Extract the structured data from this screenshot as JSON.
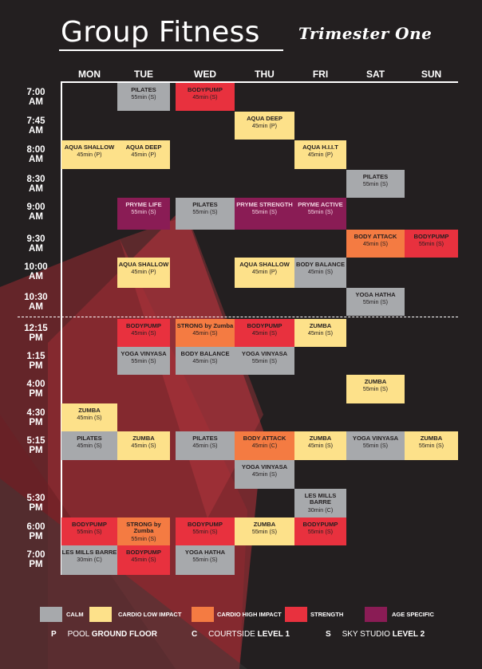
{
  "header": {
    "title": "Group Fitness",
    "subtitle": "Trimester One"
  },
  "days": [
    "MON",
    "TUE",
    "WED",
    "THU",
    "FRI",
    "SAT",
    "SUN"
  ],
  "times": [
    "7:00 AM",
    "7:45 AM",
    "8:00 AM",
    "8:30 AM",
    "9:00 AM",
    "9:30 AM",
    "10:00 AM",
    "10:30 AM",
    "12:15 PM",
    "1:15 PM",
    "4:00 PM",
    "4:30 PM",
    "5:15 PM",
    "5:30 PM",
    "6:00 PM",
    "7:00 PM"
  ],
  "classes": [
    {
      "day": "TUE",
      "time": "7:00 AM",
      "name": "PILATES",
      "duration": "55min (S)",
      "category": "calm"
    },
    {
      "day": "WED",
      "time": "7:00 AM",
      "name": "BODYPUMP",
      "duration": "45min (S)",
      "category": "strength"
    },
    {
      "day": "THU",
      "time": "7:45 AM",
      "name": "AQUA DEEP",
      "duration": "45min (P)",
      "category": "cardio-low"
    },
    {
      "day": "MON",
      "time": "8:00 AM",
      "name": "AQUA SHALLOW",
      "duration": "45min (P)",
      "category": "cardio-low"
    },
    {
      "day": "TUE",
      "time": "8:00 AM",
      "name": "AQUA DEEP",
      "duration": "45min (P)",
      "category": "cardio-low"
    },
    {
      "day": "FRI",
      "time": "8:00 AM",
      "name": "AQUA H.I.I.T",
      "duration": "45min (P)",
      "category": "cardio-low"
    },
    {
      "day": "SAT",
      "time": "8:30 AM",
      "name": "PILATES",
      "duration": "55min (S)",
      "category": "calm"
    },
    {
      "day": "TUE",
      "time": "9:00 AM",
      "name": "PRYME LIFE",
      "duration": "55min (S)",
      "category": "age"
    },
    {
      "day": "WED",
      "time": "9:00 AM",
      "name": "PILATES",
      "duration": "55min (S)",
      "category": "calm"
    },
    {
      "day": "THU",
      "time": "9:00 AM",
      "name": "PRYME STRENGTH",
      "duration": "55min (S)",
      "category": "age"
    },
    {
      "day": "FRI",
      "time": "9:00 AM",
      "name": "PRYME ACTIVE",
      "duration": "55min (S)",
      "category": "age"
    },
    {
      "day": "SAT",
      "time": "9:30 AM",
      "name": "BODY ATTACK",
      "duration": "45min (S)",
      "category": "cardio-high"
    },
    {
      "day": "SUN",
      "time": "9:30 AM",
      "name": "BODYPUMP",
      "duration": "55min (S)",
      "category": "strength"
    },
    {
      "day": "TUE",
      "time": "10:00 AM",
      "name": "AQUA SHALLOW",
      "duration": "45min (P)",
      "category": "cardio-low"
    },
    {
      "day": "THU",
      "time": "10:00 AM",
      "name": "AQUA SHALLOW",
      "duration": "45min (P)",
      "category": "cardio-low"
    },
    {
      "day": "FRI",
      "time": "10:00 AM",
      "name": "BODY BALANCE",
      "duration": "45min (S)",
      "category": "calm"
    },
    {
      "day": "SAT",
      "time": "10:30 AM",
      "name": "YOGA  HATHA",
      "duration": "55min (S)",
      "category": "calm"
    },
    {
      "day": "TUE",
      "time": "12:15 PM",
      "name": "BODYPUMP",
      "duration": "45min (S)",
      "category": "strength"
    },
    {
      "day": "WED",
      "time": "12:15 PM",
      "name": "STRONG by Zumba",
      "duration": "45min (S)",
      "category": "cardio-high"
    },
    {
      "day": "THU",
      "time": "12:15 PM",
      "name": "BODYPUMP",
      "duration": "45min (S)",
      "category": "strength"
    },
    {
      "day": "FRI",
      "time": "12:15 PM",
      "name": "ZUMBA",
      "duration": "45min (S)",
      "category": "cardio-low"
    },
    {
      "day": "TUE",
      "time": "1:15 PM",
      "name": "YOGA VINYASA",
      "duration": "55min (S)",
      "category": "calm"
    },
    {
      "day": "WED",
      "time": "1:15 PM",
      "name": "BODY BALANCE",
      "duration": "45min (S)",
      "category": "calm"
    },
    {
      "day": "THU",
      "time": "1:15 PM",
      "name": "YOGA VINYASA",
      "duration": "55min (S)",
      "category": "calm"
    },
    {
      "day": "SAT",
      "time": "4:00 PM",
      "name": "ZUMBA",
      "duration": "55min (S)",
      "category": "cardio-low"
    },
    {
      "day": "MON",
      "time": "4:30 PM",
      "name": "ZUMBA",
      "duration": "45min (S)",
      "category": "cardio-low"
    },
    {
      "day": "MON",
      "time": "5:15 PM",
      "name": "PILATES",
      "duration": "45min (S)",
      "category": "calm"
    },
    {
      "day": "TUE",
      "time": "5:15 PM",
      "name": "ZUMBA",
      "duration": "45min (S)",
      "category": "cardio-low"
    },
    {
      "day": "WED",
      "time": "5:15 PM",
      "name": "PILATES",
      "duration": "45min (S)",
      "category": "calm"
    },
    {
      "day": "THU",
      "time": "5:15 PM",
      "name": "BODY ATTACK",
      "duration": "45min (C)",
      "category": "cardio-high"
    },
    {
      "day": "FRI",
      "time": "5:15 PM",
      "name": "ZUMBA",
      "duration": "45min (S)",
      "category": "cardio-low"
    },
    {
      "day": "SAT",
      "time": "5:15 PM",
      "name": "YOGA VINYASA",
      "duration": "55min (S)",
      "category": "calm"
    },
    {
      "day": "SUN",
      "time": "5:15 PM",
      "name": "ZUMBA",
      "duration": "55min (S)",
      "category": "cardio-low"
    },
    {
      "day": "THU",
      "time": "5:15 PM",
      "slot": 2,
      "name": "YOGA VINYASA",
      "duration": "45min (S)",
      "category": "calm"
    },
    {
      "day": "FRI",
      "time": "5:30 PM",
      "name": "LES MILLS BARRE",
      "duration": "30min (C)",
      "category": "calm"
    },
    {
      "day": "MON",
      "time": "6:00 PM",
      "name": "BODYPUMP",
      "duration": "55min (S)",
      "category": "strength"
    },
    {
      "day": "TUE",
      "time": "6:00 PM",
      "name": "STRONG by Zumba",
      "duration": "55min (S)",
      "category": "cardio-high"
    },
    {
      "day": "WED",
      "time": "6:00 PM",
      "name": "BODYPUMP",
      "duration": "55min (S)",
      "category": "strength"
    },
    {
      "day": "THU",
      "time": "6:00 PM",
      "name": "ZUMBA",
      "duration": "55min (S)",
      "category": "cardio-low"
    },
    {
      "day": "FRI",
      "time": "6:00 PM",
      "name": "BODYPUMP",
      "duration": "55min (S)",
      "category": "strength"
    },
    {
      "day": "MON",
      "time": "7:00 PM",
      "name": "LES MILLS BARRE",
      "duration": "30min (C)",
      "category": "calm"
    },
    {
      "day": "TUE",
      "time": "7:00 PM",
      "name": "BODYPUMP",
      "duration": "45min (S)",
      "category": "strength"
    },
    {
      "day": "WED",
      "time": "7:00 PM",
      "name": "YOGA HATHA",
      "duration": "55min (S)",
      "category": "calm"
    }
  ],
  "legend": [
    {
      "key": "calm",
      "label": "CALM",
      "color": "#a7a9ac"
    },
    {
      "key": "cardio-low",
      "label": "CARDIO LOW IMPACT",
      "color": "#fde18a"
    },
    {
      "key": "cardio-high",
      "label": "CARDIO HIGH IMPACT",
      "color": "#f47b42"
    },
    {
      "key": "strength",
      "label": "STRENGTH",
      "color": "#e8313e"
    },
    {
      "key": "age",
      "label": "AGE SPECIFIC",
      "color": "#8a1c55"
    }
  ],
  "locations": [
    {
      "code": "P",
      "name": "POOL",
      "level": "GROUND FLOOR"
    },
    {
      "code": "C",
      "name": "COURTSIDE",
      "level": "LEVEL 1"
    },
    {
      "code": "S",
      "name": "SKY STUDIO",
      "level": "LEVEL 2"
    }
  ]
}
